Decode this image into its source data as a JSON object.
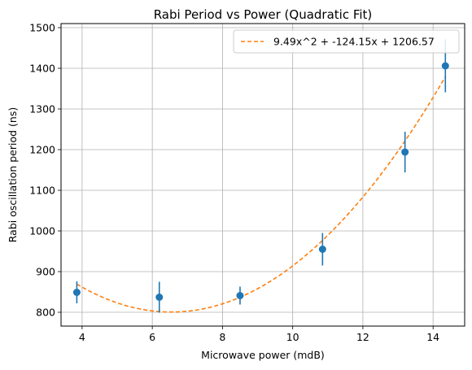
{
  "chart_data": {
    "type": "scatter",
    "title": "Rabi Period vs Power (Quadratic Fit)",
    "xlabel": "Microwave power (mdB)",
    "ylabel": "Rabi oscillation period (ns)",
    "xlim": [
      3.4,
      14.9
    ],
    "ylim": [
      766,
      1510
    ],
    "xticks": [
      4,
      6,
      8,
      10,
      12,
      14
    ],
    "yticks": [
      800,
      900,
      1000,
      1100,
      1200,
      1300,
      1400,
      1500
    ],
    "grid": true,
    "legend_position": "top-right",
    "series": [
      {
        "kind": "errorbar",
        "color": "#1f77b4",
        "x": [
          3.85,
          6.2,
          8.5,
          10.85,
          13.2,
          14.35
        ],
        "y": [
          849,
          837,
          841,
          955,
          1194,
          1406
        ],
        "yerr": [
          27,
          38,
          22,
          40,
          50,
          65
        ]
      },
      {
        "kind": "fit",
        "name": "9.49x^2 + -124.15x + 1206.57",
        "color": "#ff7f0e",
        "line_style": "dashed",
        "coefficients": [
          9.49,
          -124.15,
          1206.57
        ],
        "x_range": [
          3.85,
          14.35
        ]
      }
    ]
  }
}
